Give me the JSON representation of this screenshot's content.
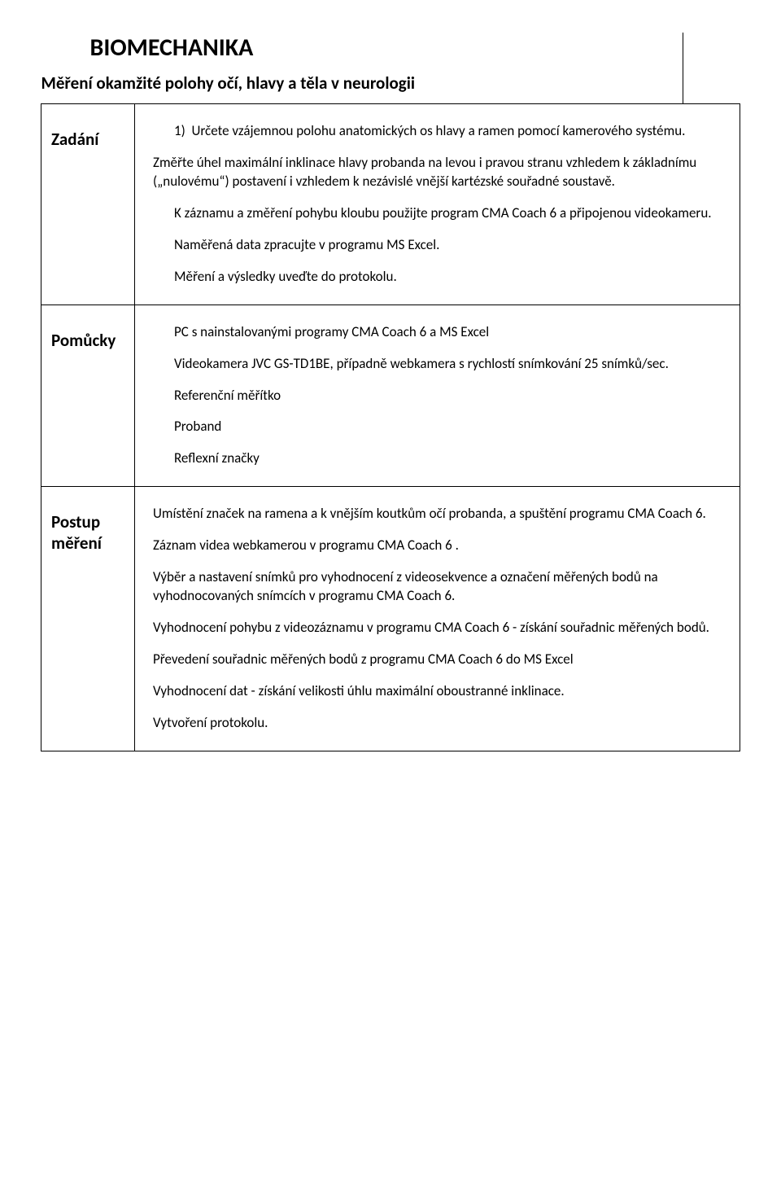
{
  "doc": {
    "title": "BIOMECHANIKA",
    "subtitle": "Měření okamžité polohy očí, hlavy a těla v neurologii"
  },
  "sections": {
    "zadani": {
      "label": "Zadání",
      "item_num": "1)",
      "item_text": "Určete vzájemnou polohu anatomických os hlavy a ramen pomocí kamerového systému.",
      "p1": "Změřte úhel maximální inklinace hlavy probanda na levou i pravou stranu vzhledem k základnímu („nulovému“) postavení i vzhledem k nezávislé vnější kartézské souřadné soustavě.",
      "p2": "K záznamu a změření pohybu kloubu použijte program CMA Coach 6 a připojenou videokameru.",
      "p3": "Naměřená data zpracujte v programu MS Excel.",
      "p4": "Měření a výsledky uveďte do protokolu."
    },
    "pomucky": {
      "label": "Pomůcky",
      "p1": "PC s nainstalovanými programy CMA Coach 6 a MS Excel",
      "p2": "Videokamera JVC GS-TD1BE, případně  webkamera s rychlostí snímkování 25 snímků/sec.",
      "p3": "Referenční měřítko",
      "p4": "Proband",
      "p5": "Reflexní značky"
    },
    "postup": {
      "label": "Postup měření",
      "p1": "Umístění značek na ramena a k vnějším koutkům očí probanda, a spuštění programu CMA Coach 6.",
      "p2": "Záznam videa webkamerou v programu CMA Coach 6 .",
      "p3": "Výběr a nastavení snímků pro vyhodnocení z videosekvence a označení měřených bodů na vyhodnocovaných snímcích v programu CMA Coach 6.",
      "p4": "Vyhodnocení pohybu z videozáznamu v programu CMA Coach 6 - získání souřadnic měřených bodů.",
      "p5": "Převedení souřadnic měřených bodů z programu CMA Coach 6 do MS Excel",
      "p6": "Vyhodnocení dat - získání velikosti úhlu maximální oboustranné inklinace.",
      "p7": "Vytvoření protokolu."
    }
  },
  "style": {
    "page_bg": "#ffffff",
    "text_color": "#000000",
    "border_color": "#000000",
    "title_fontsize": 30,
    "subtitle_fontsize": 21,
    "label_fontsize": 21,
    "body_fontsize": 17,
    "font_family": "Calibri, Arial, sans-serif"
  }
}
